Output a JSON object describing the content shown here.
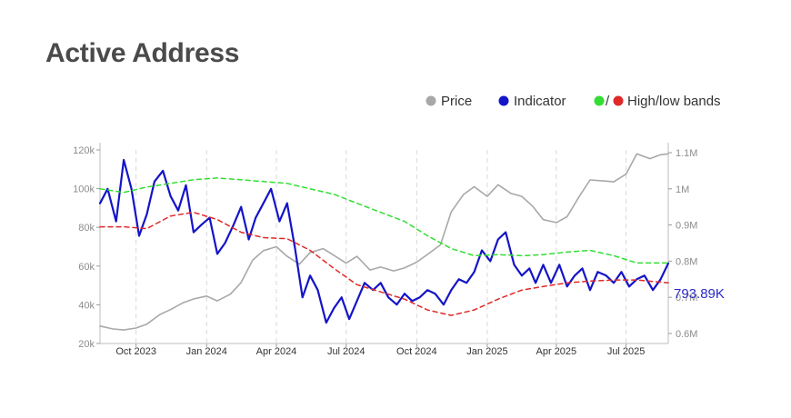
{
  "page": {
    "title": "Active Address"
  },
  "chart_data": {
    "type": "line",
    "title": "Active Address",
    "legend": [
      {
        "name": "Price",
        "color": "#a8a8a8"
      },
      {
        "name": "Indicator",
        "color": "#1414c8"
      },
      {
        "name": "High/low bands",
        "colors": [
          "#33dd33",
          "#e02828"
        ]
      }
    ],
    "legend_position": "top-right",
    "grid": "vertical dashed lines at x ticks",
    "x_ticks": [
      "Oct 2023",
      "Jan 2024",
      "Apr 2024",
      "Jul 2024",
      "Oct 2024",
      "Jan 2025",
      "Apr 2025",
      "Jul 2025"
    ],
    "x_range": [
      "2023-08-15",
      "2025-08-25"
    ],
    "y_left": {
      "label": "",
      "ticks": [
        "20k",
        "40k",
        "60k",
        "80k",
        "100k",
        "120k"
      ],
      "range": [
        20000,
        120000
      ]
    },
    "y_right": {
      "label": "",
      "ticks": [
        "0.6M",
        "0.7M",
        "0.8M",
        "0.9M",
        "1M",
        "1.1M"
      ],
      "range": [
        600000,
        1100000
      ]
    },
    "last_value_label": "793.89K",
    "series": [
      {
        "name": "Price",
        "axis": "left",
        "color": "#a8a8a8",
        "x": [
          "2023-08-15",
          "2023-09-01",
          "2023-09-15",
          "2023-10-01",
          "2023-10-15",
          "2023-11-01",
          "2023-11-15",
          "2023-12-01",
          "2023-12-15",
          "2024-01-01",
          "2024-01-15",
          "2024-02-01",
          "2024-02-15",
          "2024-03-01",
          "2024-03-15",
          "2024-04-01",
          "2024-04-15",
          "2024-05-01",
          "2024-05-15",
          "2024-06-01",
          "2024-06-15",
          "2024-07-01",
          "2024-07-15",
          "2024-08-01",
          "2024-08-15",
          "2024-09-01",
          "2024-09-15",
          "2024-10-01",
          "2024-10-15",
          "2024-11-01",
          "2024-11-15",
          "2024-12-01",
          "2024-12-15",
          "2025-01-01",
          "2025-01-15",
          "2025-02-01",
          "2025-02-15",
          "2025-03-01",
          "2025-03-15",
          "2025-04-01",
          "2025-04-15",
          "2025-05-01",
          "2025-05-15",
          "2025-06-01",
          "2025-06-15",
          "2025-07-01",
          "2025-07-15",
          "2025-08-01",
          "2025-08-15",
          "2025-08-25"
        ],
        "values": [
          29000,
          27500,
          27000,
          28000,
          30000,
          35000,
          37500,
          41000,
          43000,
          44500,
          42000,
          45500,
          51500,
          63000,
          68000,
          70000,
          65000,
          61000,
          67000,
          69000,
          65500,
          61500,
          65000,
          58000,
          59500,
          57500,
          59000,
          62000,
          66000,
          71000,
          88000,
          97000,
          101000,
          96000,
          102000,
          97500,
          96000,
          91000,
          84000,
          82500,
          85500,
          96000,
          104500,
          104000,
          103500,
          107500,
          118000,
          115500,
          117500,
          118000
        ]
      },
      {
        "name": "Indicator",
        "axis": "right",
        "color": "#1414c8",
        "x": [
          "2023-08-15",
          "2023-08-25",
          "2023-09-05",
          "2023-09-15",
          "2023-09-25",
          "2023-10-05",
          "2023-10-15",
          "2023-10-25",
          "2023-11-05",
          "2023-11-15",
          "2023-11-25",
          "2023-12-05",
          "2023-12-15",
          "2023-12-25",
          "2024-01-05",
          "2024-01-15",
          "2024-01-25",
          "2024-02-05",
          "2024-02-15",
          "2024-02-25",
          "2024-03-05",
          "2024-03-15",
          "2024-03-25",
          "2024-04-05",
          "2024-04-15",
          "2024-04-25",
          "2024-05-05",
          "2024-05-15",
          "2024-05-25",
          "2024-06-05",
          "2024-06-15",
          "2024-06-25",
          "2024-07-05",
          "2024-07-15",
          "2024-07-25",
          "2024-08-05",
          "2024-08-15",
          "2024-08-25",
          "2024-09-05",
          "2024-09-15",
          "2024-09-25",
          "2024-10-05",
          "2024-10-15",
          "2024-10-25",
          "2024-11-05",
          "2024-11-15",
          "2024-11-25",
          "2024-12-05",
          "2024-12-15",
          "2024-12-25",
          "2025-01-05",
          "2025-01-15",
          "2025-01-25",
          "2025-02-05",
          "2025-02-15",
          "2025-02-25",
          "2025-03-05",
          "2025-03-15",
          "2025-03-25",
          "2025-04-05",
          "2025-04-15",
          "2025-04-25",
          "2025-05-05",
          "2025-05-15",
          "2025-05-25",
          "2025-06-05",
          "2025-06-15",
          "2025-06-25",
          "2025-07-05",
          "2025-07-15",
          "2025-07-25",
          "2025-08-05",
          "2025-08-15",
          "2025-08-25"
        ],
        "values": [
          960000,
          1000000,
          910000,
          1080000,
          1000000,
          870000,
          930000,
          1020000,
          1050000,
          980000,
          940000,
          1010000,
          880000,
          900000,
          920000,
          820000,
          850000,
          900000,
          950000,
          860000,
          920000,
          960000,
          1000000,
          910000,
          960000,
          840000,
          700000,
          760000,
          720000,
          630000,
          670000,
          700000,
          640000,
          690000,
          740000,
          720000,
          740000,
          700000,
          680000,
          710000,
          690000,
          700000,
          720000,
          710000,
          680000,
          720000,
          750000,
          740000,
          770000,
          830000,
          800000,
          860000,
          880000,
          790000,
          760000,
          780000,
          740000,
          790000,
          740000,
          790000,
          730000,
          760000,
          780000,
          720000,
          770000,
          760000,
          740000,
          770000,
          730000,
          750000,
          760000,
          720000,
          750000,
          793890
        ]
      },
      {
        "name": "High band",
        "axis": "right",
        "color": "#33dd33",
        "x": [
          "2023-08-15",
          "2023-09-15",
          "2023-10-15",
          "2023-11-15",
          "2023-12-15",
          "2024-01-15",
          "2024-02-15",
          "2024-03-15",
          "2024-04-15",
          "2024-05-15",
          "2024-06-15",
          "2024-07-15",
          "2024-08-15",
          "2024-09-15",
          "2024-10-15",
          "2024-11-15",
          "2024-12-15",
          "2025-01-15",
          "2025-02-15",
          "2025-03-15",
          "2025-04-15",
          "2025-05-15",
          "2025-06-15",
          "2025-07-15",
          "2025-08-25"
        ],
        "values": [
          1000000,
          990000,
          1005000,
          1015000,
          1025000,
          1030000,
          1025000,
          1020000,
          1015000,
          1000000,
          985000,
          960000,
          935000,
          910000,
          870000,
          835000,
          815000,
          818000,
          815000,
          818000,
          825000,
          830000,
          815000,
          795000,
          795000
        ]
      },
      {
        "name": "Low band",
        "axis": "right",
        "color": "#e02828",
        "x": [
          "2023-08-15",
          "2023-09-15",
          "2023-10-15",
          "2023-11-15",
          "2023-12-15",
          "2024-01-15",
          "2024-02-15",
          "2024-03-15",
          "2024-04-15",
          "2024-05-15",
          "2024-06-15",
          "2024-07-15",
          "2024-08-15",
          "2024-09-15",
          "2024-10-15",
          "2024-11-15",
          "2024-12-15",
          "2025-01-15",
          "2025-02-15",
          "2025-03-15",
          "2025-04-15",
          "2025-05-15",
          "2025-06-15",
          "2025-07-15",
          "2025-08-25"
        ],
        "values": [
          895000,
          895000,
          890000,
          925000,
          935000,
          915000,
          880000,
          865000,
          862000,
          830000,
          780000,
          735000,
          715000,
          695000,
          665000,
          650000,
          665000,
          695000,
          720000,
          730000,
          740000,
          745000,
          748000,
          748000,
          740000
        ]
      }
    ]
  }
}
